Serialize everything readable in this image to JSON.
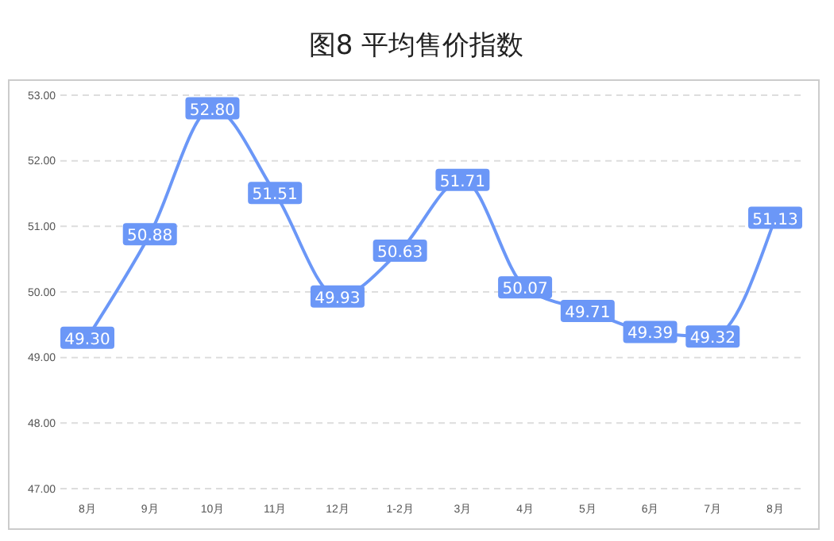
{
  "chart_data": {
    "type": "line",
    "title": "图8 平均售价指数",
    "categories": [
      "8月",
      "9月",
      "10月",
      "11月",
      "12月",
      "1-2月",
      "3月",
      "4月",
      "5月",
      "6月",
      "7月",
      "8月"
    ],
    "values": [
      49.3,
      50.88,
      52.8,
      51.51,
      49.93,
      50.63,
      51.71,
      50.07,
      49.71,
      49.39,
      49.32,
      51.13
    ],
    "color": "#6b97f7",
    "value_labels": [
      "49.30",
      "50.88",
      "52.80",
      "51.51",
      "49.93",
      "50.63",
      "51.71",
      "50.07",
      "49.71",
      "49.39",
      "49.32",
      "51.13"
    ],
    "ylim": [
      47,
      53
    ],
    "yticks": [
      {
        "value": 47,
        "label": "47.00"
      },
      {
        "value": 48,
        "label": "48.00"
      },
      {
        "value": 49,
        "label": "49.00"
      },
      {
        "value": 50,
        "label": "50.00"
      },
      {
        "value": 51,
        "label": "51.00"
      },
      {
        "value": 52,
        "label": "52.00"
      },
      {
        "value": 53,
        "label": "53.00"
      }
    ],
    "grid": "y",
    "line_style": "solid",
    "marker": "square"
  }
}
